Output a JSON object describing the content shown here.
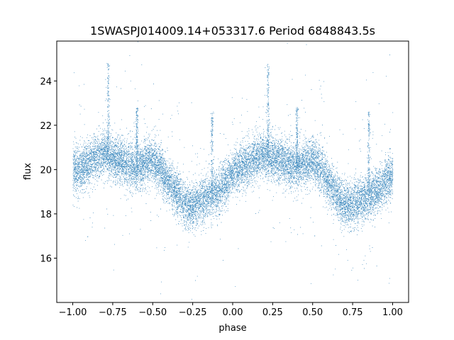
{
  "chart_data": {
    "type": "scatter",
    "title": "1SWASPJ014009.14+053317.6 Period 6848843.5s",
    "xlabel": "phase",
    "ylabel": "flux",
    "xlim": [
      -1.1,
      1.1
    ],
    "ylim": [
      14.0,
      25.8
    ],
    "xticks": [
      -1.0,
      -0.75,
      -0.5,
      -0.25,
      0.0,
      0.25,
      0.5,
      0.75,
      1.0
    ],
    "xtick_labels": [
      "−1.00",
      "−0.75",
      "−0.50",
      "−0.25",
      "0.00",
      "0.25",
      "0.50",
      "0.75",
      "1.00"
    ],
    "yticks": [
      16,
      18,
      20,
      22,
      24
    ],
    "ytick_labels": [
      "16",
      "18",
      "20",
      "22",
      "24"
    ],
    "grid": false,
    "marker_color": "#1f77b4",
    "series": [
      {
        "phase_profile": {
          "x": [
            0.0,
            0.05,
            0.1,
            0.15,
            0.2,
            0.25,
            0.3,
            0.35,
            0.4,
            0.45,
            0.5,
            0.55,
            0.6,
            0.65,
            0.7,
            0.75,
            0.8,
            0.85,
            0.9,
            0.95,
            1.0
          ],
          "y": [
            19.9,
            20.1,
            20.3,
            20.6,
            20.7,
            20.5,
            20.4,
            20.2,
            20.1,
            20.3,
            20.4,
            20.0,
            19.4,
            18.9,
            18.4,
            18.4,
            18.6,
            18.8,
            19.0,
            19.4,
            19.8
          ]
        },
        "scatter_sd": 0.5,
        "flare_columns": [
          {
            "x": 0.22,
            "y_top": 24.8
          },
          {
            "x": 0.4,
            "y_top": 22.8
          },
          {
            "x": 0.85,
            "y_top": 22.6
          },
          {
            "x": -0.78,
            "y_top": 24.8
          },
          {
            "x": -0.6,
            "y_top": 22.8
          },
          {
            "x": -0.13,
            "y_top": 22.6
          }
        ],
        "point_count": 16000
      }
    ]
  }
}
